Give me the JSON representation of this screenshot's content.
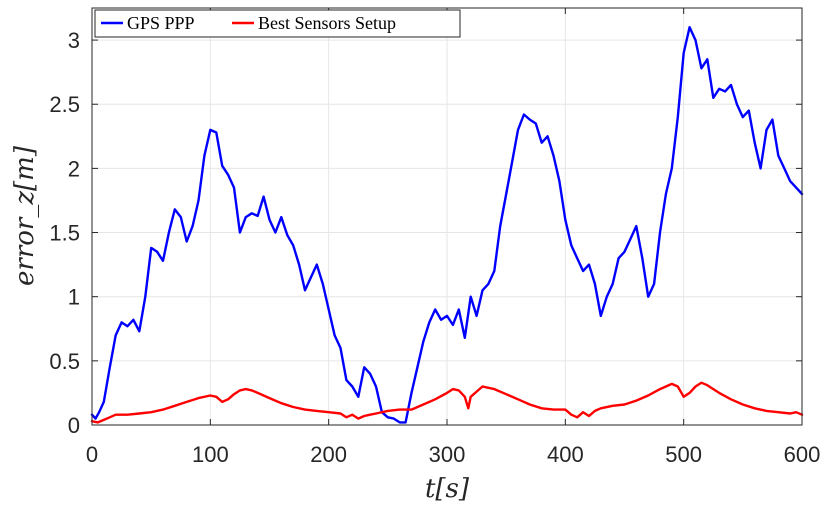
{
  "chart_data": {
    "type": "line",
    "title": "",
    "xlabel": "t[s]",
    "ylabel": "error_z[m]",
    "xlim": [
      0,
      600
    ],
    "ylim": [
      0,
      3.25
    ],
    "xticks": [
      0,
      100,
      200,
      300,
      400,
      500,
      600
    ],
    "yticks": [
      0,
      0.5,
      1,
      1.5,
      2,
      2.5,
      3
    ],
    "xtick_labels": [
      "0",
      "100",
      "200",
      "300",
      "400",
      "500",
      "600"
    ],
    "ytick_labels": [
      "0",
      "0.5",
      "1",
      "1.5",
      "2",
      "2.5",
      "3"
    ],
    "grid": true,
    "legend_position": "top-left",
    "series": [
      {
        "name": "GPS PPP",
        "color": "#0000ff",
        "x": [
          0,
          3,
          6,
          10,
          15,
          20,
          25,
          30,
          35,
          40,
          45,
          50,
          55,
          60,
          65,
          70,
          75,
          80,
          85,
          90,
          95,
          100,
          105,
          110,
          115,
          120,
          125,
          130,
          135,
          140,
          145,
          150,
          155,
          160,
          165,
          170,
          175,
          180,
          185,
          190,
          195,
          200,
          205,
          210,
          215,
          220,
          225,
          230,
          235,
          240,
          245,
          250,
          255,
          260,
          265,
          270,
          275,
          280,
          285,
          290,
          295,
          300,
          305,
          310,
          315,
          320,
          325,
          330,
          335,
          340,
          345,
          350,
          355,
          360,
          365,
          370,
          375,
          380,
          385,
          390,
          395,
          400,
          405,
          410,
          415,
          420,
          425,
          430,
          435,
          440,
          445,
          450,
          455,
          460,
          465,
          470,
          475,
          480,
          485,
          490,
          495,
          500,
          505,
          510,
          515,
          520,
          525,
          530,
          535,
          540,
          545,
          550,
          555,
          560,
          565,
          570,
          575,
          580,
          585,
          590,
          595,
          600
        ],
        "y": [
          0.08,
          0.05,
          0.1,
          0.18,
          0.45,
          0.7,
          0.8,
          0.77,
          0.82,
          0.73,
          1.0,
          1.38,
          1.35,
          1.28,
          1.5,
          1.68,
          1.62,
          1.43,
          1.55,
          1.75,
          2.1,
          2.3,
          2.28,
          2.02,
          1.95,
          1.85,
          1.5,
          1.62,
          1.65,
          1.63,
          1.78,
          1.6,
          1.5,
          1.62,
          1.48,
          1.4,
          1.25,
          1.05,
          1.15,
          1.25,
          1.1,
          0.9,
          0.7,
          0.6,
          0.35,
          0.3,
          0.22,
          0.45,
          0.4,
          0.3,
          0.1,
          0.06,
          0.05,
          0.02,
          0.02,
          0.25,
          0.45,
          0.65,
          0.8,
          0.9,
          0.82,
          0.85,
          0.78,
          0.9,
          0.68,
          1.0,
          0.85,
          1.05,
          1.1,
          1.2,
          1.55,
          1.8,
          2.05,
          2.3,
          2.42,
          2.38,
          2.35,
          2.2,
          2.25,
          2.1,
          1.9,
          1.6,
          1.4,
          1.3,
          1.2,
          1.25,
          1.1,
          0.85,
          1.0,
          1.1,
          1.3,
          1.35,
          1.45,
          1.55,
          1.3,
          1.0,
          1.1,
          1.5,
          1.8,
          2.0,
          2.4,
          2.9,
          3.1,
          3.0,
          2.78,
          2.85,
          2.55,
          2.62,
          2.6,
          2.65,
          2.5,
          2.4,
          2.45,
          2.2,
          2.0,
          2.3,
          2.38,
          2.1,
          2.0,
          1.9,
          1.85,
          1.8
        ]
      },
      {
        "name": "Best Sensors Setup",
        "color": "#ff0000",
        "x": [
          0,
          5,
          10,
          15,
          20,
          30,
          40,
          50,
          60,
          70,
          80,
          90,
          100,
          105,
          110,
          115,
          120,
          125,
          130,
          135,
          140,
          150,
          160,
          170,
          180,
          190,
          200,
          210,
          215,
          220,
          225,
          230,
          235,
          240,
          250,
          260,
          270,
          280,
          290,
          300,
          305,
          310,
          315,
          318,
          320,
          325,
          330,
          335,
          340,
          350,
          360,
          370,
          380,
          390,
          400,
          405,
          410,
          415,
          420,
          425,
          430,
          440,
          450,
          460,
          470,
          480,
          490,
          495,
          500,
          505,
          510,
          515,
          520,
          530,
          540,
          550,
          560,
          570,
          580,
          590,
          595,
          600
        ],
        "y": [
          0.03,
          0.02,
          0.04,
          0.06,
          0.08,
          0.08,
          0.09,
          0.1,
          0.12,
          0.15,
          0.18,
          0.21,
          0.23,
          0.22,
          0.18,
          0.2,
          0.24,
          0.27,
          0.28,
          0.27,
          0.25,
          0.21,
          0.17,
          0.14,
          0.12,
          0.11,
          0.1,
          0.09,
          0.06,
          0.08,
          0.05,
          0.07,
          0.08,
          0.09,
          0.11,
          0.12,
          0.12,
          0.16,
          0.2,
          0.25,
          0.28,
          0.27,
          0.22,
          0.13,
          0.22,
          0.26,
          0.3,
          0.29,
          0.28,
          0.24,
          0.2,
          0.16,
          0.13,
          0.12,
          0.12,
          0.08,
          0.06,
          0.1,
          0.07,
          0.11,
          0.13,
          0.15,
          0.16,
          0.19,
          0.23,
          0.28,
          0.32,
          0.3,
          0.22,
          0.25,
          0.3,
          0.33,
          0.31,
          0.25,
          0.2,
          0.16,
          0.13,
          0.11,
          0.1,
          0.09,
          0.1,
          0.08
        ]
      }
    ]
  }
}
